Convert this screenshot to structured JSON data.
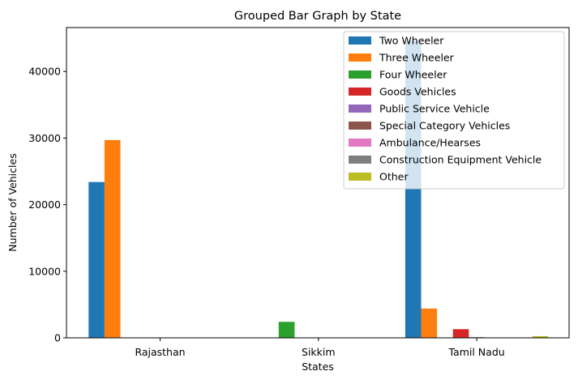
{
  "chart_data": {
    "type": "bar",
    "title": "Grouped Bar Graph by State",
    "xlabel": "States",
    "ylabel": "Number of Vehicles",
    "categories": [
      "Rajasthan",
      "Sikkim",
      "Tamil Nadu"
    ],
    "ylim": [
      0,
      46600
    ],
    "yticks": [
      0,
      10000,
      20000,
      30000,
      40000
    ],
    "ytick_labels": [
      "0",
      "10000",
      "20000",
      "30000",
      "40000"
    ],
    "grid": false,
    "legend_position": "top-right",
    "series": [
      {
        "name": "Two Wheeler",
        "color": "#1f77b4",
        "values": [
          23400,
          0,
          44600
        ]
      },
      {
        "name": "Three Wheeler",
        "color": "#ff7f0e",
        "values": [
          29700,
          0,
          4400
        ]
      },
      {
        "name": "Four Wheeler",
        "color": "#2ca02c",
        "values": [
          0,
          2400,
          0
        ]
      },
      {
        "name": "Goods Vehicles",
        "color": "#d62728",
        "values": [
          0,
          0,
          1300
        ]
      },
      {
        "name": "Public Service Vehicle",
        "color": "#9467bd",
        "values": [
          0,
          0,
          100
        ]
      },
      {
        "name": "Special Category Vehicles",
        "color": "#8c564b",
        "values": [
          0,
          0,
          0
        ]
      },
      {
        "name": "Ambulance/Hearses",
        "color": "#e377c2",
        "values": [
          0,
          0,
          0
        ]
      },
      {
        "name": "Construction Equipment Vehicle",
        "color": "#7f7f7f",
        "values": [
          0,
          0,
          0
        ]
      },
      {
        "name": "Other",
        "color": "#bcbd22",
        "values": [
          0,
          0,
          250
        ]
      }
    ]
  }
}
